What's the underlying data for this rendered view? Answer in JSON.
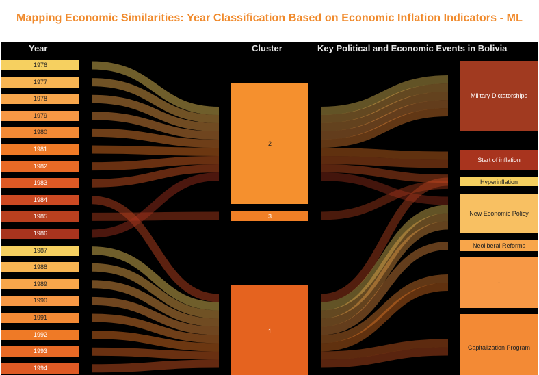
{
  "title": "Mapping Economic Similarities: Year Classification Based on Economic Inflation Indicators - ML",
  "headers": {
    "year": "Year",
    "cluster": "Cluster",
    "events": "Key Political and Economic Events in Bolivia"
  },
  "years": [
    {
      "label": "1976",
      "cluster": "2",
      "event": "Military Dictatorships",
      "color": "#f6d060",
      "text": "#222222"
    },
    {
      "label": "1977",
      "cluster": "2",
      "event": "Military Dictatorships",
      "color": "#f8b553",
      "text": "#222222"
    },
    {
      "label": "1978",
      "cluster": "2",
      "event": "Military Dictatorships",
      "color": "#f8a64b",
      "text": "#222222"
    },
    {
      "label": "1979",
      "cluster": "2",
      "event": "Military Dictatorships",
      "color": "#f79845",
      "text": "#222222"
    },
    {
      "label": "1980",
      "cluster": "2",
      "event": "Military Dictatorships",
      "color": "#f38a35",
      "text": "#222222"
    },
    {
      "label": "1981",
      "cluster": "2",
      "event": "Start of inflation",
      "color": "#ef7a26",
      "text": "#ffffff"
    },
    {
      "label": "1982",
      "cluster": "2",
      "event": "Start of inflation",
      "color": "#e86a26",
      "text": "#ffffff"
    },
    {
      "label": "1983",
      "cluster": "2",
      "event": "Hyperinflation",
      "color": "#de5a25",
      "text": "#ffffff"
    },
    {
      "label": "1984",
      "cluster": "1",
      "event": "Hyperinflation",
      "color": "#cc4a23",
      "text": "#ffffff"
    },
    {
      "label": "1985",
      "cluster": "3",
      "event": "Hyperinflation",
      "color": "#b9401f",
      "text": "#ffffff"
    },
    {
      "label": "1986",
      "cluster": "2",
      "event": "New Economic Policy",
      "color": "#a8341e",
      "text": "#ffffff"
    },
    {
      "label": "1987",
      "cluster": "1",
      "event": "New Economic Policy",
      "color": "#f6d060",
      "text": "#222222"
    },
    {
      "label": "1988",
      "cluster": "1",
      "event": "New Economic Policy",
      "color": "#f8b553",
      "text": "#222222"
    },
    {
      "label": "1989",
      "cluster": "1",
      "event": "New Economic Policy",
      "color": "#f8a64b",
      "text": "#222222"
    },
    {
      "label": "1990",
      "cluster": "1",
      "event": "Neoliberal Reforms",
      "color": "#f79845",
      "text": "#222222"
    },
    {
      "label": "1991",
      "cluster": "1",
      "event": "-",
      "color": "#f38a35",
      "text": "#222222"
    },
    {
      "label": "1992",
      "cluster": "1",
      "event": "-",
      "color": "#ef7a26",
      "text": "#ffffff"
    },
    {
      "label": "1993",
      "cluster": "1",
      "event": "Capitalization Program",
      "color": "#e86a26",
      "text": "#ffffff"
    },
    {
      "label": "1994",
      "cluster": "1",
      "event": "Capitalization Program",
      "color": "#de5a25",
      "text": "#ffffff"
    }
  ],
  "clusters": [
    {
      "label": "2",
      "color": "#f5902e",
      "text": "#222222"
    },
    {
      "label": "3",
      "color": "#f07f26",
      "text": "#ffffff"
    },
    {
      "label": "1",
      "color": "#e5631f",
      "text": "#ffffff"
    }
  ],
  "events": [
    {
      "label": "Military Dictatorships",
      "color": "#a13a20",
      "text": "#ffffff"
    },
    {
      "label": "Start of inflation",
      "color": "#a8341e",
      "text": "#ffffff"
    },
    {
      "label": "Hyperinflation",
      "color": "#f6d060",
      "text": "#222222"
    },
    {
      "label": "New Economic Policy",
      "color": "#f8c062",
      "text": "#222222"
    },
    {
      "label": "Neoliberal Reforms",
      "color": "#f8a64b",
      "text": "#222222"
    },
    {
      "label": "-",
      "color": "#f79845",
      "text": "#222222"
    },
    {
      "label": "Capitalization Program",
      "color": "#f38a35",
      "text": "#222222"
    }
  ]
}
